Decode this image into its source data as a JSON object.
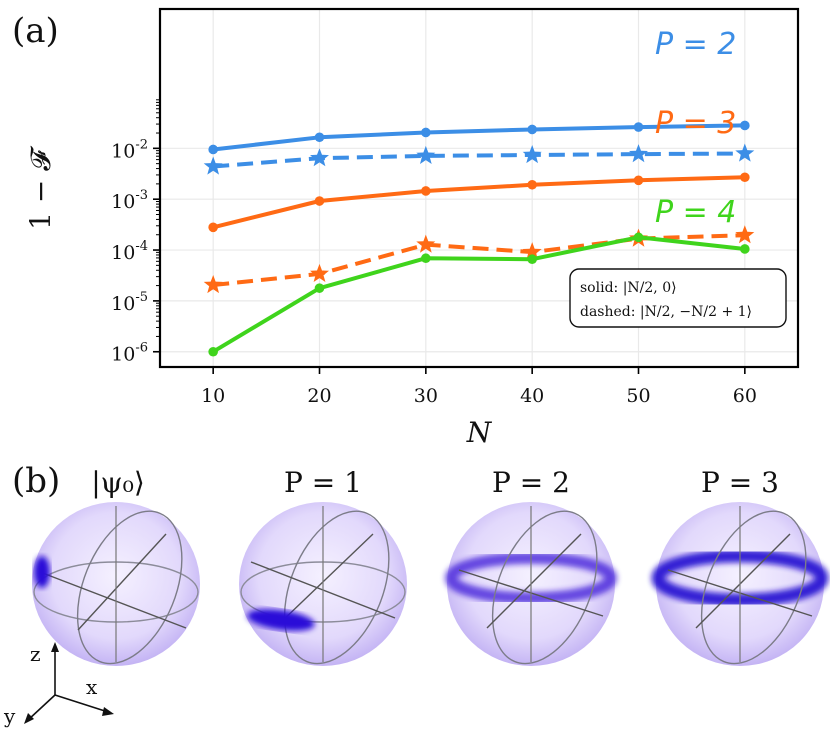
{
  "panel_a": {
    "label": "(a)",
    "chart_data": {
      "type": "line",
      "yscale": "log",
      "xlabel": "N",
      "ylabel": "1 − 𝓕",
      "x": [
        10,
        20,
        30,
        40,
        50,
        60
      ],
      "xticks": [
        "10",
        "20",
        "30",
        "40",
        "50",
        "60"
      ],
      "xlim": [
        5,
        65
      ],
      "ylim_exp": [
        -6.3,
        0.74
      ],
      "yticks": [
        {
          "exp": -6,
          "label": "10",
          "sup": "-6"
        },
        {
          "exp": -5,
          "label": "10",
          "sup": "-5"
        },
        {
          "exp": -4,
          "label": "10",
          "sup": "-4"
        },
        {
          "exp": -3,
          "label": "10",
          "sup": "-3"
        },
        {
          "exp": -2,
          "label": "10",
          "sup": "-2"
        }
      ],
      "grid": true,
      "series": [
        {
          "name": "P=2 solid",
          "color": "#3c8ee6",
          "style": "solid",
          "marker": "circle",
          "values": [
            0.0095,
            0.0165,
            0.0205,
            0.0235,
            0.0262,
            0.0282
          ]
        },
        {
          "name": "P=2 dashed",
          "color": "#3c8ee6",
          "style": "dashed",
          "marker": "star",
          "values": [
            0.0044,
            0.0064,
            0.0071,
            0.0074,
            0.0077,
            0.0079
          ]
        },
        {
          "name": "P=3 solid",
          "color": "#ff6a14",
          "style": "solid",
          "marker": "circle",
          "values": [
            0.00028,
            0.00092,
            0.00145,
            0.00192,
            0.00235,
            0.0027
          ]
        },
        {
          "name": "P=3 dashed",
          "color": "#ff6a14",
          "style": "dashed",
          "marker": "star",
          "values": [
            2.05e-05,
            3.4e-05,
            0.000128,
            9.1e-05,
            0.000168,
            0.000196
          ]
        },
        {
          "name": "P=4 solid",
          "color": "#3fd41c",
          "style": "solid",
          "marker": "circle",
          "values": [
            1e-06,
            1.78e-05,
            6.9e-05,
            6.6e-05,
            0.000178,
            0.000105
          ]
        }
      ],
      "annotations": [
        {
          "text": "P = 2",
          "color": "#3c8ee6"
        },
        {
          "text": "P = 3",
          "color": "#ff6a14"
        },
        {
          "text": "P = 4",
          "color": "#3fd41c"
        }
      ],
      "legend": {
        "position": "lower-right",
        "entries": [
          "solid:  |N/2, 0⟩",
          "dashed:  |N/2, −N/2 + 1⟩"
        ]
      }
    }
  },
  "panel_b": {
    "label": "(b)",
    "spheres": [
      {
        "title": "|ψ₀⟩"
      },
      {
        "title": "P = 1"
      },
      {
        "title": "P = 2"
      },
      {
        "title": "P = 3"
      }
    ],
    "axes": {
      "z": "z",
      "x": "x",
      "y": "y"
    }
  }
}
